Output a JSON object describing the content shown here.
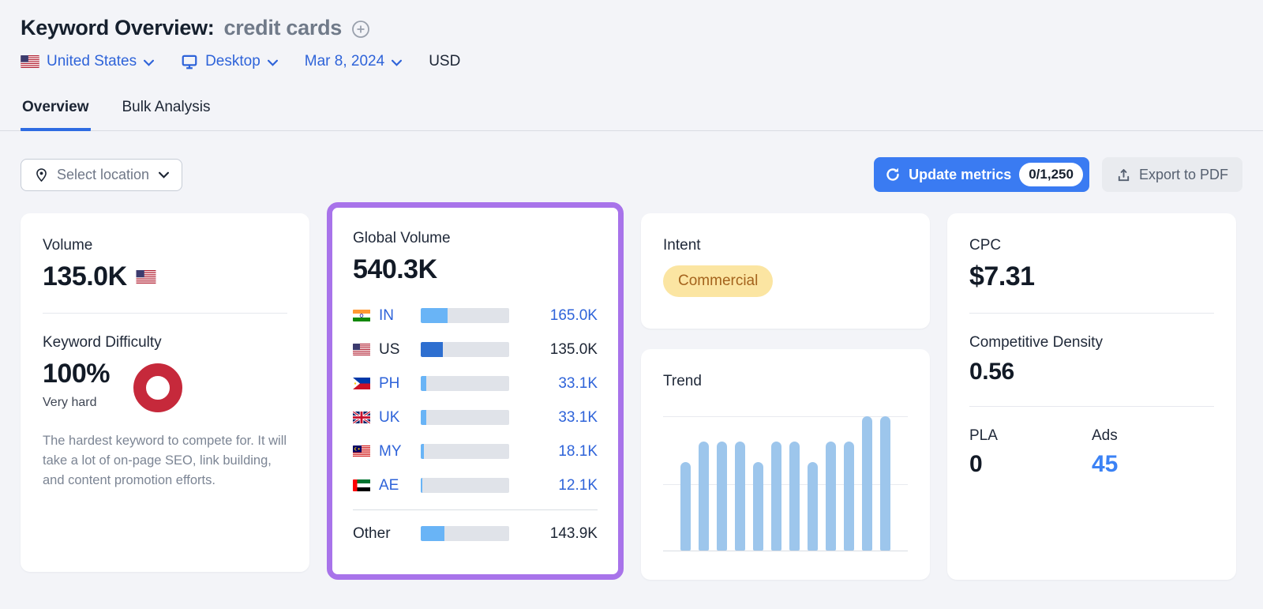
{
  "header": {
    "title": "Keyword Overview:",
    "keyword": "credit cards"
  },
  "filters": {
    "country": "United States",
    "device": "Desktop",
    "date": "Mar 8, 2024",
    "currency": "USD"
  },
  "tabs": [
    {
      "label": "Overview",
      "active": true
    },
    {
      "label": "Bulk Analysis",
      "active": false
    }
  ],
  "toolbar": {
    "select_location_label": "Select location",
    "update_metrics_label": "Update metrics",
    "update_metrics_quota": "0/1,250",
    "export_pdf_label": "Export to PDF"
  },
  "cards": {
    "volume": {
      "label": "Volume",
      "value": "135.0K"
    },
    "keyword_difficulty": {
      "label": "Keyword Difficulty",
      "value": "100%",
      "level": "Very hard",
      "description": "The hardest keyword to compete for. It will take a lot of on-page SEO, link building, and content promotion efforts."
    },
    "global_volume": {
      "label": "Global Volume",
      "value": "540.3K",
      "rows": [
        {
          "code": "IN",
          "flag": "india",
          "value": "165.0K",
          "pct": 30.5,
          "link": true,
          "bar": "light"
        },
        {
          "code": "US",
          "flag": "united-states",
          "value": "135.0K",
          "pct": 25.0,
          "link": false,
          "bar": "dark"
        },
        {
          "code": "PH",
          "flag": "philippines",
          "value": "33.1K",
          "pct": 6.1,
          "link": true,
          "bar": "light"
        },
        {
          "code": "UK",
          "flag": "united-kingdom",
          "value": "33.1K",
          "pct": 6.1,
          "link": true,
          "bar": "light"
        },
        {
          "code": "MY",
          "flag": "malaysia",
          "value": "18.1K",
          "pct": 3.3,
          "link": true,
          "bar": "light"
        },
        {
          "code": "AE",
          "flag": "united-arab-emirates",
          "value": "12.1K",
          "pct": 2.2,
          "link": true,
          "bar": "light"
        },
        {
          "code": "Other",
          "flag": null,
          "value": "143.9K",
          "pct": 26.6,
          "link": false,
          "bar": "light"
        }
      ]
    },
    "intent": {
      "label": "Intent",
      "badge": "Commercial"
    },
    "trend": {
      "label": "Trend"
    },
    "cpc": {
      "label": "CPC",
      "value": "$7.31"
    },
    "competitive_density": {
      "label": "Competitive Density",
      "value": "0.56"
    },
    "pla": {
      "label": "PLA",
      "value": "0"
    },
    "ads": {
      "label": "Ads",
      "value": "45"
    }
  },
  "chart_data": [
    {
      "id": "global_volume_distribution",
      "type": "bar",
      "orientation": "horizontal",
      "title": "Global Volume",
      "total_label": "540.3K",
      "categories": [
        "IN",
        "US",
        "PH",
        "UK",
        "MY",
        "AE",
        "Other"
      ],
      "values": [
        165000,
        135000,
        33100,
        33100,
        18100,
        12100,
        143900
      ],
      "value_labels": [
        "165.0K",
        "135.0K",
        "33.1K",
        "33.1K",
        "18.1K",
        "12.1K",
        "143.9K"
      ]
    },
    {
      "id": "trend",
      "type": "bar",
      "title": "Trend",
      "categories": [
        "",
        "",
        "",
        "",
        "",
        "",
        "",
        "",
        "",
        "",
        "",
        ""
      ],
      "values_pct": [
        66,
        81,
        81,
        81,
        66,
        81,
        81,
        66,
        81,
        81,
        100,
        100
      ],
      "ylim": [
        0,
        100
      ],
      "grid": "horizontal",
      "legend": "none"
    }
  ],
  "colors": {
    "link_blue": "#2e63d9",
    "primary_button_blue": "#3a7bf2",
    "highlight_purple": "#a873ea",
    "difficulty_red": "#c6293b",
    "intent_badge_bg": "#fbe5a2",
    "intent_badge_text": "#a4631c",
    "trend_bar_blue": "#9dc6ec",
    "country_bar_light": "#69b4f6",
    "country_bar_dark": "#2e6fd0",
    "page_bg": "#f3f4f8"
  }
}
